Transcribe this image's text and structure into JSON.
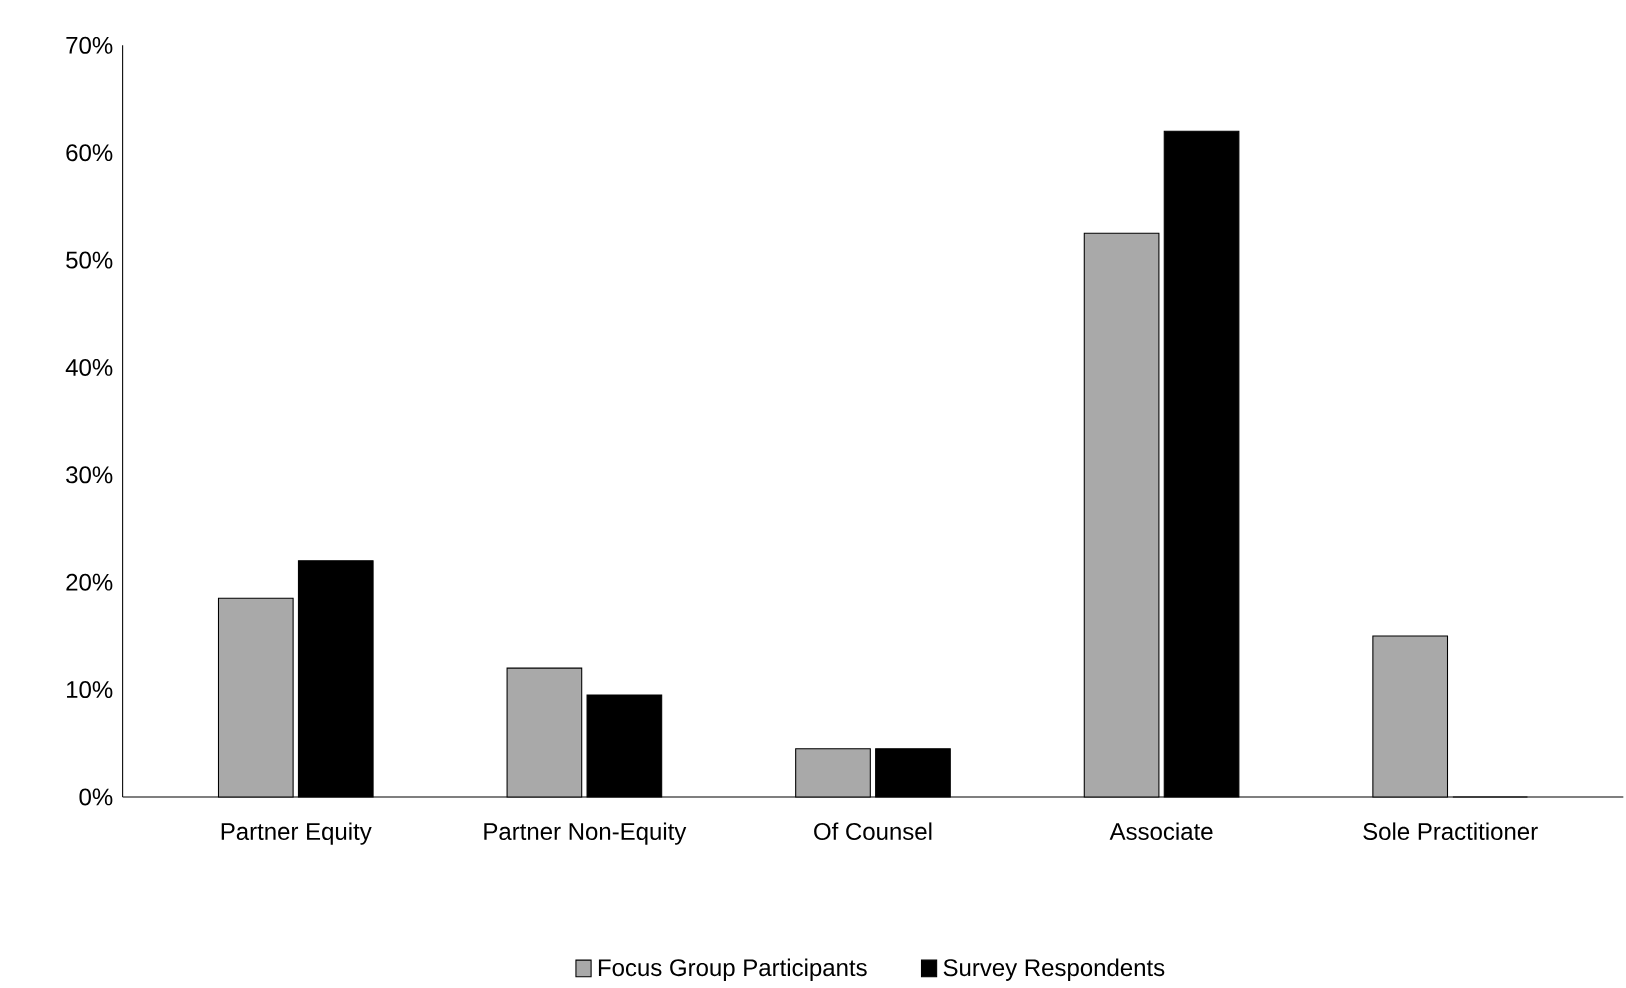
{
  "chart_data": {
    "type": "bar",
    "categories": [
      "Partner Equity",
      "Partner Non-Equity",
      "Of Counsel",
      "Associate",
      "Sole Practitioner"
    ],
    "series": [
      {
        "name": "Focus Group Participants",
        "color": "#a9a9a9",
        "values": [
          18.5,
          12,
          4.5,
          52.5,
          15
        ]
      },
      {
        "name": "Survey Respondents",
        "color": "#000000",
        "values": [
          22,
          9.5,
          4.5,
          62,
          0
        ]
      }
    ],
    "ylim": [
      0,
      70
    ],
    "yticks": [
      {
        "value": 0,
        "label": "0%"
      },
      {
        "value": 10,
        "label": "10%"
      },
      {
        "value": 20,
        "label": "20%"
      },
      {
        "value": 30,
        "label": "30%"
      },
      {
        "value": 40,
        "label": "40%"
      },
      {
        "value": 50,
        "label": "50%"
      },
      {
        "value": 60,
        "label": "60%"
      },
      {
        "value": 70,
        "label": "70%"
      }
    ],
    "grid": false,
    "legend": "bottom"
  }
}
